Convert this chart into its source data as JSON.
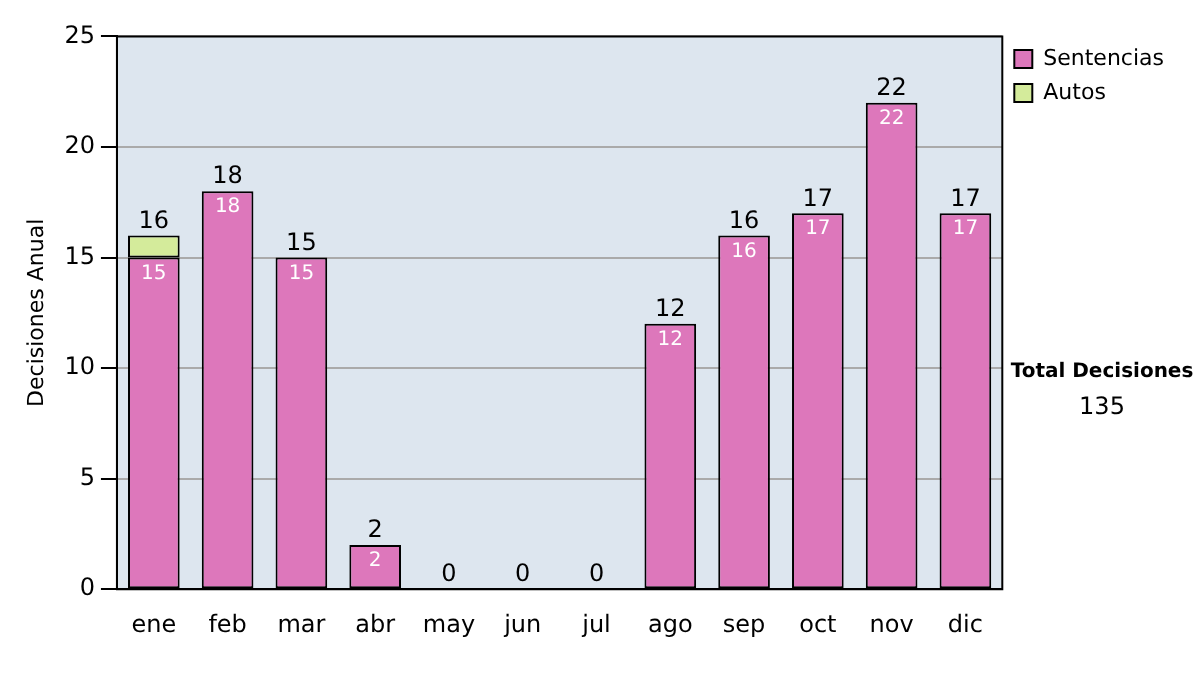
{
  "chart_data": {
    "type": "bar",
    "stacked": true,
    "ylabel": "Decisiones Anual",
    "categories": [
      "ene",
      "feb",
      "mar",
      "abr",
      "may",
      "jun",
      "jul",
      "ago",
      "sep",
      "oct",
      "nov",
      "dic"
    ],
    "series": [
      {
        "name": "Sentencias",
        "color": "#dd77bb",
        "values": [
          15,
          18,
          15,
          2,
          0,
          0,
          0,
          12,
          16,
          17,
          22,
          17
        ],
        "value_labels": [
          "15",
          "18",
          "15",
          "2",
          null,
          null,
          null,
          "12",
          "16",
          "17",
          "22",
          "17"
        ]
      },
      {
        "name": "Autos",
        "color": "#d4eb9b",
        "values": [
          1,
          0,
          0,
          0,
          0,
          0,
          0,
          0,
          0,
          0,
          0,
          0
        ]
      }
    ],
    "totals": [
      "16",
      "18",
      "15",
      "2",
      "0",
      "0",
      "0",
      "12",
      "16",
      "17",
      "22",
      "17"
    ],
    "ylim": [
      0,
      25
    ],
    "yticks": [
      0,
      5,
      10,
      15,
      20,
      25
    ],
    "grid": "y",
    "legend": "right",
    "annotations": [
      "Total Decisiones",
      "135"
    ]
  }
}
